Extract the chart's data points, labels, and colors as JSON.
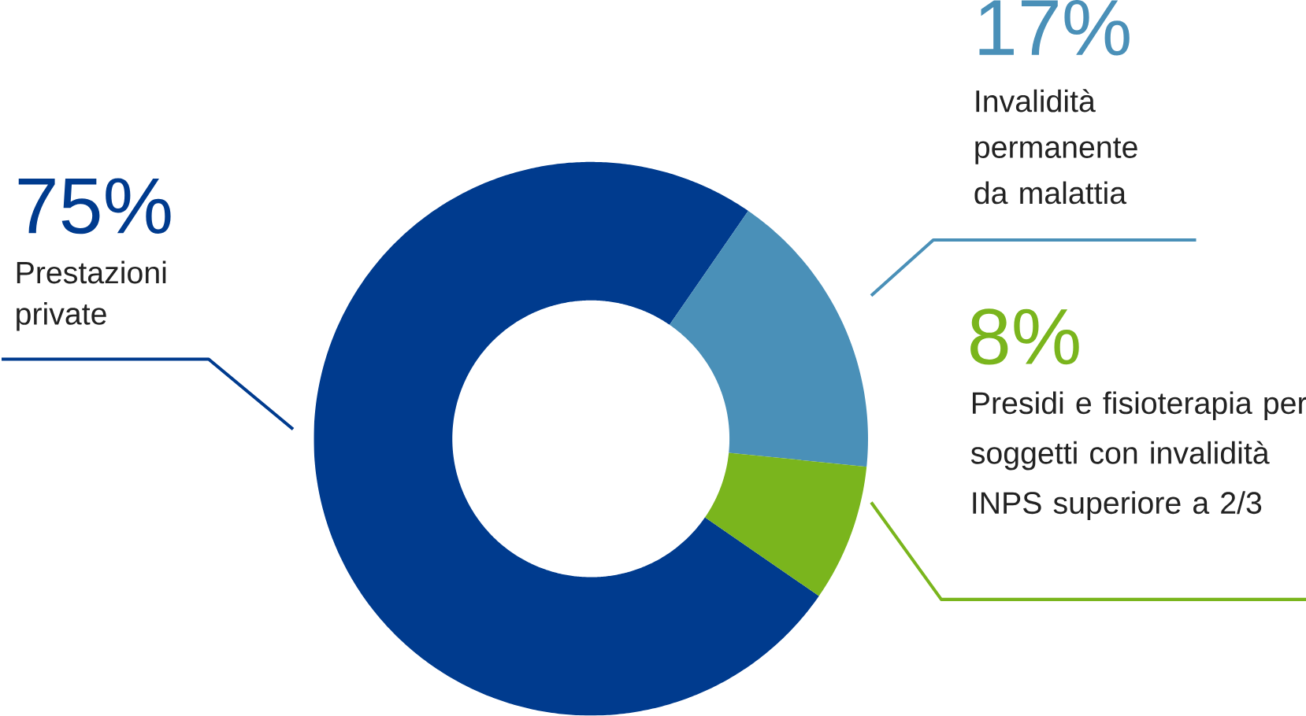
{
  "chart_data": {
    "type": "donut",
    "categories": [
      "Prestazioni private",
      "Invalidità permanente da malattia",
      "Presidi e fisioterapia per soggetti con invalidità INPS superiore a 2/3"
    ],
    "values": [
      75,
      17,
      8
    ],
    "colors": [
      "#003b8e",
      "#4a90b8",
      "#7ab51d"
    ],
    "value_labels": [
      "75%",
      "17%",
      "8%"
    ]
  }
}
